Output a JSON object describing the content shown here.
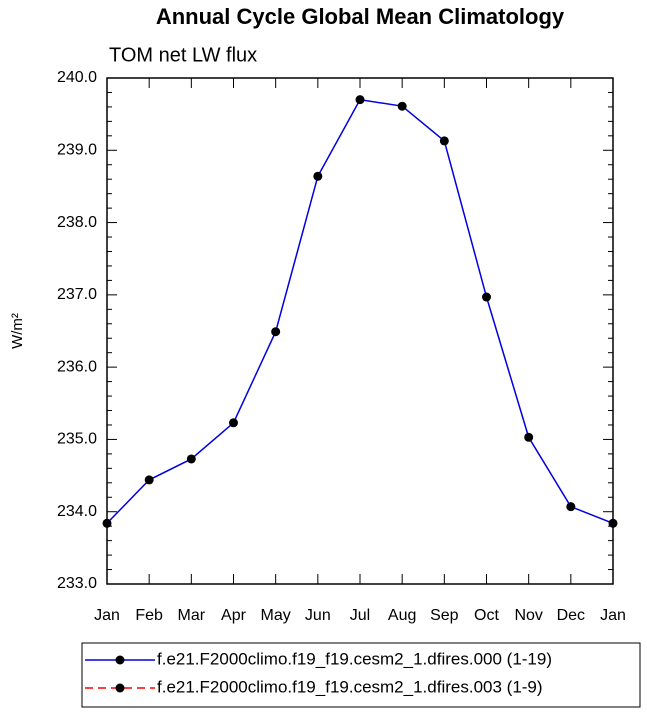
{
  "chart_data": {
    "type": "line",
    "title": "Annual Cycle Global Mean Climatology",
    "subtitle": "TOM net LW flux",
    "ylabel": "W/m²",
    "categories": [
      "Jan",
      "Feb",
      "Mar",
      "Apr",
      "May",
      "Jun",
      "Jul",
      "Aug",
      "Sep",
      "Oct",
      "Nov",
      "Dec",
      "Jan"
    ],
    "series": [
      {
        "name": "f.e21.F2000climo.f19_f19.cesm2_1.dfires.000 (1-19)",
        "color": "#0000e0",
        "dash": "solid",
        "values": [
          233.84,
          234.44,
          234.73,
          235.23,
          236.49,
          238.64,
          239.7,
          239.61,
          239.13,
          236.97,
          235.03,
          234.07,
          233.84
        ]
      },
      {
        "name": "f.e21.F2000climo.f19_f19.cesm2_1.dfires.003 (1-9)",
        "color": "#ff0000",
        "dash": "dashed",
        "values": [
          null,
          null,
          null,
          null,
          null,
          null,
          null,
          null,
          null,
          null,
          null,
          null,
          null
        ]
      }
    ],
    "marker_color": "#000000",
    "ylim": [
      233,
      240
    ],
    "yticks": [
      {
        "value": 233,
        "label": "233.0"
      },
      {
        "value": 234,
        "label": "234.0"
      },
      {
        "value": 235,
        "label": "235.0"
      },
      {
        "value": 236,
        "label": "236.0"
      },
      {
        "value": 237,
        "label": "237.0"
      },
      {
        "value": 238,
        "label": "238.0"
      },
      {
        "value": 239,
        "label": "239.0"
      },
      {
        "value": 240,
        "label": "240.0"
      }
    ],
    "yminorticks": [
      233.2,
      233.4,
      233.6,
      233.8,
      234.2,
      234.4,
      234.6,
      234.8,
      235.2,
      235.4,
      235.6,
      235.8,
      236.2,
      236.4,
      236.6,
      236.8,
      237.2,
      237.4,
      237.6,
      237.8,
      238.2,
      238.4,
      238.6,
      238.8,
      239.2,
      239.4,
      239.6,
      239.8
    ],
    "legend": "bottom",
    "grid": false
  }
}
